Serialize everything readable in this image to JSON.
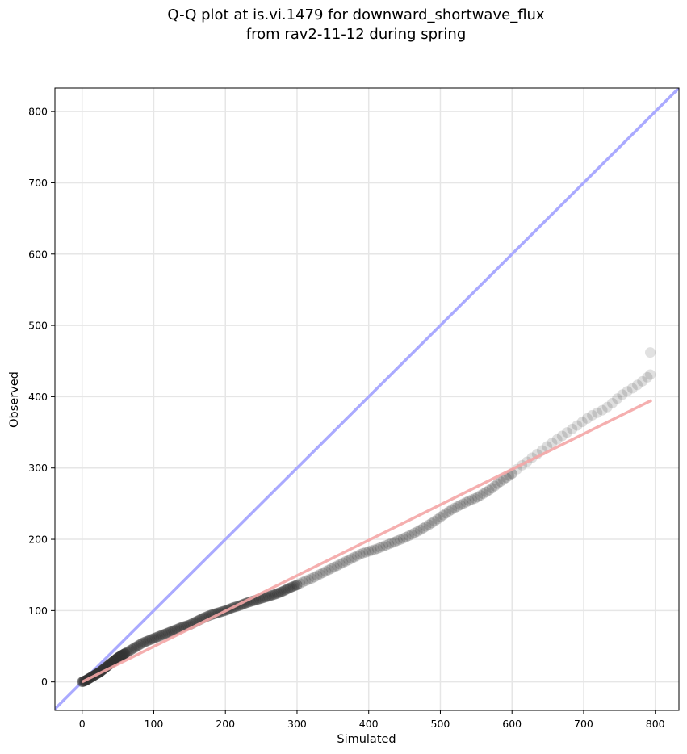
{
  "chart_data": {
    "type": "scatter",
    "title": [
      "Q-Q plot at is.vi.1479 for downward_shortwave_flux",
      "from rav2-11-12 during spring"
    ],
    "xlabel": "Simulated",
    "ylabel": "Observed",
    "xlim": [
      -38,
      833
    ],
    "ylim": [
      -40,
      833
    ],
    "xticks": [
      0,
      100,
      200,
      300,
      400,
      500,
      600,
      700,
      800
    ],
    "yticks": [
      0,
      100,
      200,
      300,
      400,
      500,
      600,
      700,
      800
    ],
    "grid": true,
    "one_to_one_line": {
      "color": "#aaaaff"
    },
    "fit_line": {
      "x": [
        0,
        795
      ],
      "y": [
        0,
        395
      ],
      "color": "#f4a6a6"
    },
    "marker_color": "#333333",
    "quantiles": {
      "x": [
        0,
        5,
        10,
        15,
        20,
        25,
        30,
        35,
        40,
        45,
        50,
        55,
        60,
        65,
        70,
        75,
        80,
        85,
        90,
        95,
        100,
        110,
        120,
        130,
        140,
        150,
        160,
        170,
        180,
        190,
        200,
        210,
        220,
        230,
        240,
        250,
        260,
        270,
        280,
        290,
        300,
        310,
        320,
        330,
        340,
        350,
        360,
        370,
        380,
        390,
        400,
        410,
        420,
        430,
        440,
        450,
        460,
        470,
        480,
        490,
        500,
        510,
        520,
        530,
        540,
        550,
        560,
        570,
        580,
        590,
        600,
        610,
        620,
        630,
        640,
        650,
        660,
        670,
        680,
        690,
        700,
        710,
        720,
        730,
        740,
        750,
        760,
        770,
        780,
        790,
        793
      ],
      "y": [
        0,
        2,
        5,
        8,
        11,
        14,
        18,
        22,
        26,
        30,
        34,
        37,
        40,
        43,
        46,
        49,
        52,
        55,
        57,
        59,
        61,
        65,
        69,
        73,
        77,
        80,
        85,
        90,
        94,
        97,
        100,
        104,
        107,
        111,
        114,
        117,
        120,
        123,
        127,
        132,
        136,
        141,
        145,
        150,
        155,
        160,
        165,
        170,
        175,
        180,
        183,
        186,
        190,
        194,
        198,
        202,
        207,
        212,
        218,
        224,
        231,
        238,
        244,
        249,
        254,
        258,
        264,
        270,
        278,
        285,
        292,
        301,
        308,
        316,
        323,
        331,
        338,
        345,
        352,
        359,
        366,
        373,
        378,
        383,
        391,
        400,
        407,
        413,
        420,
        428,
        431
      ],
      "outlier": {
        "x": 793,
        "y": 462
      }
    }
  }
}
